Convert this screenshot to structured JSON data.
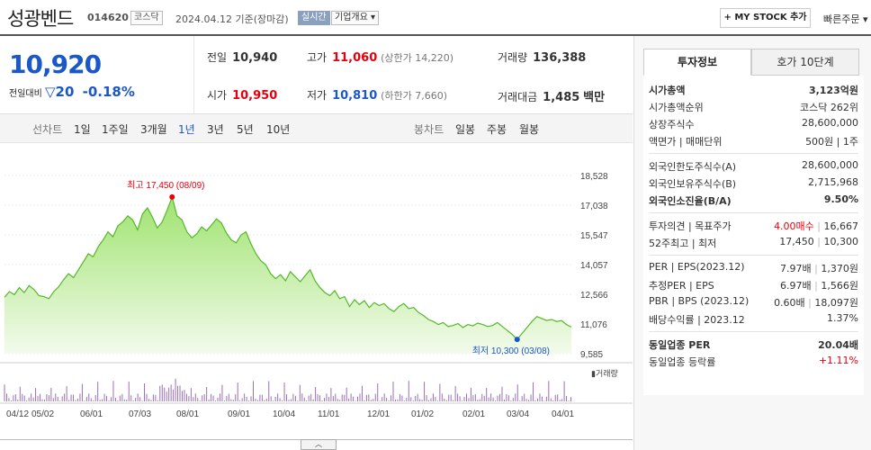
{
  "header": {
    "name": "성광벤드",
    "code": "014620",
    "market": "코스닥",
    "date": "2024.04.12 기준(장마감)",
    "realtime": "실시간",
    "company": "기업개요",
    "mystock": "+ MY STOCK 추가",
    "fast_order": "빠른주문"
  },
  "price": {
    "current": "10,920",
    "change_label": "전일대비",
    "change": "20",
    "change_pct": "-0.18%",
    "prev_label": "전일",
    "prev": "10,940",
    "high_label": "고가",
    "high": "11,060",
    "upper_limit": "(상한가 14,220)",
    "volume_label": "거래량",
    "volume": "136,388",
    "open_label": "시가",
    "open": "10,950",
    "low_label": "저가",
    "low": "10,810",
    "lower_limit": "(하한가 7,660)",
    "amount_label": "거래대금",
    "amount": "1,485",
    "amount_unit": "백만"
  },
  "periods": {
    "line_label": "선차트",
    "items": [
      "1일",
      "1주일",
      "3개월",
      "1년",
      "3년",
      "5년",
      "10년"
    ],
    "active": "1년",
    "candle_label": "봉차트",
    "candles": [
      "일봉",
      "주봉",
      "월봉"
    ]
  },
  "chart_data": {
    "type": "area",
    "y_ticks": [
      "18,528",
      "17,038",
      "15,547",
      "14,057",
      "12,566",
      "11,076",
      "9,585"
    ],
    "x_ticks": [
      "04/12",
      "05/02",
      "06/01",
      "07/03",
      "08/01",
      "09/01",
      "10/04",
      "11/01",
      "12/01",
      "01/02",
      "02/01",
      "03/04",
      "04/01"
    ],
    "ylim": [
      9585,
      18528
    ],
    "max_label": "최고 17,450 (08/09)",
    "min_label": "최저 10,300 (03/08)",
    "volume_label": "거래량",
    "values": [
      12420,
      12700,
      12550,
      12900,
      12650,
      13000,
      12800,
      12500,
      12450,
      12350,
      12700,
      12950,
      13300,
      13600,
      13400,
      13800,
      14200,
      14600,
      14450,
      14950,
      15300,
      15700,
      15450,
      16000,
      16200,
      16500,
      16300,
      15800,
      16600,
      16900,
      16450,
      15900,
      16200,
      16800,
      17450,
      16500,
      16300,
      15700,
      15400,
      15600,
      15950,
      15750,
      16050,
      16350,
      16150,
      15650,
      15300,
      15150,
      15550,
      15700,
      15100,
      14600,
      14250,
      14050,
      13600,
      13350,
      13550,
      13250,
      13700,
      13450,
      13200,
      13500,
      13800,
      13250,
      12900,
      12650,
      12500,
      12750,
      12350,
      12450,
      11950,
      12300,
      12050,
      12250,
      11900,
      12150,
      12000,
      12100,
      11850,
      11700,
      11950,
      12100,
      11850,
      11900,
      11650,
      11500,
      11300,
      11200,
      11050,
      11150,
      10950,
      11000,
      11100,
      10900,
      11050,
      10980,
      11120,
      11050,
      10950,
      11000,
      11150,
      10950,
      10750,
      10550,
      10300,
      10600,
      10900,
      11200,
      11450,
      11350,
      11250,
      11300,
      11200,
      11250,
      11050,
      10920
    ]
  },
  "panel": {
    "tab_invest": "투자정보",
    "tab_quote": "호가 10단계",
    "rows1": [
      {
        "l": "시가총액",
        "r": "3,123억원",
        "bold": true
      },
      {
        "l": "시가총액순위",
        "r": "코스닥 262위"
      },
      {
        "l": "상장주식수",
        "r": "28,600,000"
      },
      {
        "l": "액면가 | 매매단위",
        "r": "500원 | 1주"
      }
    ],
    "rows2": [
      {
        "l": "외국인한도주식수(A)",
        "r": "28,600,000"
      },
      {
        "l": "외국인보유주식수(B)",
        "r": "2,715,968"
      },
      {
        "l": "외국인소진율(B/A)",
        "r": "9.50%",
        "bold": true
      }
    ],
    "rows3": [
      {
        "l": "투자의견 | 목표주가",
        "r1": "4.00매수",
        "r2": "16,667"
      },
      {
        "l": "52주최고 | 최저",
        "r1": "17,450",
        "r2": "10,300"
      }
    ],
    "rows4": [
      {
        "l": "PER | EPS(2023.12)",
        "r1": "7.97배",
        "r2": "1,370원"
      },
      {
        "l": "추정PER | EPS",
        "r1": "6.97배",
        "r2": "1,566원"
      },
      {
        "l": "PBR | BPS (2023.12)",
        "r1": "0.60배",
        "r2": "18,097원"
      },
      {
        "l": "배당수익률 | 2023.12",
        "r": "1.37%"
      }
    ],
    "rows5": [
      {
        "l": "동일업종 PER",
        "r": "20.04배",
        "bold": true
      },
      {
        "l": "동일업종 등락률",
        "r": "+1.11%"
      }
    ]
  }
}
